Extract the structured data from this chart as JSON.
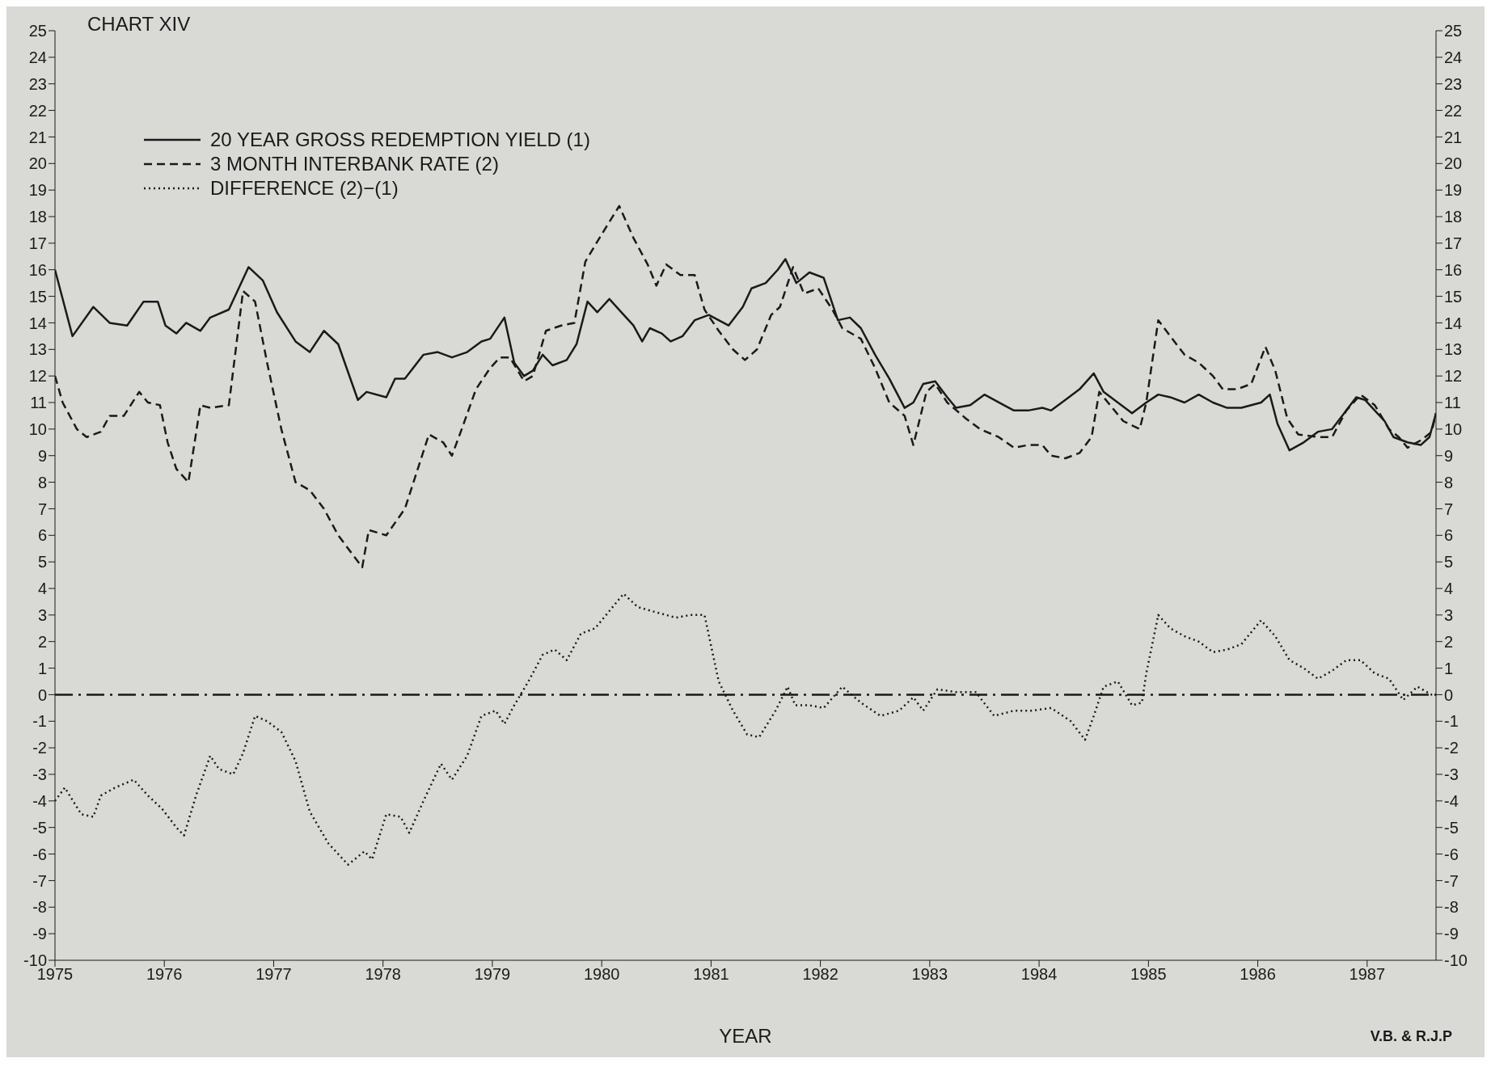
{
  "chart_data": {
    "type": "line",
    "title": "CHART XIV",
    "xlabel": "YEAR",
    "annotations": [
      "V.B. & R.J.P"
    ],
    "xlim": [
      1975,
      1987.63
    ],
    "xticks": [
      1975,
      1976,
      1977,
      1978,
      1979,
      1980,
      1981,
      1982,
      1983,
      1984,
      1985,
      1986,
      1987
    ],
    "ylim": [
      -10,
      25
    ],
    "yticks": [
      -10,
      -9,
      -8,
      -7,
      -6,
      -5,
      -4,
      -3,
      -2,
      -1,
      0,
      1,
      2,
      3,
      4,
      5,
      6,
      7,
      8,
      9,
      10,
      11,
      12,
      13,
      14,
      15,
      16,
      17,
      18,
      19,
      20,
      21,
      22,
      23,
      24,
      25
    ],
    "y2lim": [
      -10,
      25
    ],
    "y2ticks": [
      -10,
      -9,
      -8,
      -7,
      -6,
      -5,
      -4,
      -3,
      -2,
      -1,
      0,
      1,
      2,
      3,
      4,
      5,
      6,
      7,
      8,
      9,
      10,
      11,
      12,
      13,
      14,
      15,
      16,
      17,
      18,
      19,
      20,
      21,
      22,
      23,
      24,
      25
    ],
    "legend": "top left",
    "marker": "none",
    "ref_lines": [
      {
        "axis": "y",
        "value": 0,
        "line_style": "dashdot",
        "color": "#1a1a1a"
      }
    ],
    "series": [
      {
        "name": "20 YEAR GROSS REDEMPTION YIELD (1)",
        "color": "#1a1a1a",
        "line_style": "solid",
        "x": [
          1975.0,
          1975.16,
          1975.35,
          1975.5,
          1975.66,
          1975.81,
          1975.94,
          1976.01,
          1976.11,
          1976.2,
          1976.33,
          1976.42,
          1976.59,
          1976.77,
          1976.9,
          1977.03,
          1977.2,
          1977.33,
          1977.46,
          1977.59,
          1977.77,
          1977.85,
          1978.03,
          1978.11,
          1978.2,
          1978.37,
          1978.5,
          1978.63,
          1978.77,
          1978.9,
          1978.98,
          1979.11,
          1979.2,
          1979.29,
          1979.37,
          1979.46,
          1979.55,
          1979.68,
          1979.77,
          1979.87,
          1979.96,
          1980.07,
          1980.18,
          1980.29,
          1980.37,
          1980.44,
          1980.55,
          1980.63,
          1980.74,
          1980.85,
          1980.98,
          1981.16,
          1981.29,
          1981.37,
          1981.5,
          1981.61,
          1981.68,
          1981.78,
          1981.9,
          1982.03,
          1982.16,
          1982.27,
          1982.37,
          1982.5,
          1982.63,
          1982.77,
          1982.85,
          1982.94,
          1983.05,
          1983.16,
          1983.24,
          1983.37,
          1983.5,
          1983.68,
          1983.77,
          1983.9,
          1984.03,
          1984.11,
          1984.24,
          1984.37,
          1984.5,
          1984.59,
          1984.72,
          1984.85,
          1984.98,
          1985.09,
          1985.2,
          1985.33,
          1985.46,
          1985.59,
          1985.72,
          1985.85,
          1986.03,
          1986.11,
          1986.18,
          1986.29,
          1986.42,
          1986.55,
          1986.68,
          1986.79,
          1986.9,
          1986.98,
          1987.07,
          1987.16,
          1987.24,
          1987.37,
          1987.49,
          1987.57,
          1987.63
        ],
        "values": [
          16.0,
          13.5,
          14.6,
          14.0,
          13.9,
          14.8,
          14.8,
          13.9,
          13.6,
          14.0,
          13.7,
          14.2,
          14.5,
          16.1,
          15.6,
          14.4,
          13.3,
          12.9,
          13.7,
          13.2,
          11.1,
          11.4,
          11.2,
          11.9,
          11.9,
          12.8,
          12.9,
          12.7,
          12.9,
          13.3,
          13.4,
          14.2,
          12.5,
          12.0,
          12.2,
          12.8,
          12.4,
          12.6,
          13.2,
          14.8,
          14.4,
          14.9,
          14.4,
          13.9,
          13.3,
          13.8,
          13.6,
          13.3,
          13.5,
          14.1,
          14.3,
          13.9,
          14.6,
          15.3,
          15.5,
          16.0,
          16.4,
          15.5,
          15.9,
          15.7,
          14.1,
          14.2,
          13.8,
          12.8,
          11.9,
          10.8,
          11.0,
          11.7,
          11.8,
          11.2,
          10.8,
          10.9,
          11.3,
          10.9,
          10.7,
          10.7,
          10.8,
          10.7,
          11.1,
          11.5,
          12.1,
          11.4,
          11.0,
          10.6,
          11.0,
          11.3,
          11.2,
          11.0,
          11.3,
          11.0,
          10.8,
          10.8,
          11.0,
          11.3,
          10.2,
          9.2,
          9.5,
          9.9,
          10.0,
          10.6,
          11.2,
          11.1,
          10.7,
          10.3,
          9.7,
          9.5,
          9.4,
          9.7,
          10.6
        ]
      },
      {
        "name": "3 MONTH INTERBANK RATE (2)",
        "color": "#1a1a1a",
        "line_style": "dashed",
        "x": [
          1975.0,
          1975.07,
          1975.2,
          1975.29,
          1975.42,
          1975.5,
          1975.63,
          1975.77,
          1975.85,
          1975.96,
          1976.03,
          1976.11,
          1976.22,
          1976.33,
          1976.42,
          1976.59,
          1976.72,
          1976.83,
          1976.94,
          1977.07,
          1977.2,
          1977.33,
          1977.46,
          1977.59,
          1977.81,
          1977.87,
          1978.03,
          1978.2,
          1978.42,
          1978.55,
          1978.63,
          1978.72,
          1978.85,
          1978.98,
          1979.07,
          1979.16,
          1979.29,
          1979.37,
          1979.49,
          1979.63,
          1979.75,
          1979.85,
          1979.98,
          1980.16,
          1980.29,
          1980.42,
          1980.5,
          1980.59,
          1980.72,
          1980.85,
          1980.94,
          1981.07,
          1981.2,
          1981.31,
          1981.42,
          1981.55,
          1981.63,
          1981.75,
          1981.85,
          1981.98,
          1982.11,
          1982.2,
          1982.37,
          1982.5,
          1982.63,
          1982.77,
          1982.85,
          1982.97,
          1983.05,
          1983.16,
          1983.33,
          1983.46,
          1983.63,
          1983.77,
          1983.9,
          1984.03,
          1984.11,
          1984.24,
          1984.37,
          1984.48,
          1984.55,
          1984.63,
          1984.77,
          1984.92,
          1984.98,
          1985.09,
          1985.2,
          1985.33,
          1985.46,
          1985.59,
          1985.68,
          1985.81,
          1985.94,
          1986.07,
          1986.16,
          1986.27,
          1986.37,
          1986.55,
          1986.68,
          1986.81,
          1986.94,
          1987.07,
          1987.2,
          1987.29,
          1987.37,
          1987.5,
          1987.59,
          1987.63
        ],
        "values": [
          12.0,
          11.0,
          10.0,
          9.7,
          9.9,
          10.5,
          10.5,
          11.4,
          11.0,
          10.9,
          9.5,
          8.5,
          8.0,
          10.9,
          10.8,
          10.9,
          15.2,
          14.8,
          12.5,
          10.0,
          8.0,
          7.7,
          7.0,
          6.0,
          4.8,
          6.2,
          6.0,
          7.0,
          9.8,
          9.5,
          9.0,
          10.0,
          11.5,
          12.3,
          12.7,
          12.7,
          11.8,
          12.0,
          13.7,
          13.9,
          14.0,
          16.3,
          17.2,
          18.4,
          17.2,
          16.2,
          15.4,
          16.2,
          15.8,
          15.8,
          14.5,
          13.7,
          13.0,
          12.6,
          13.0,
          14.3,
          14.6,
          16.1,
          15.1,
          15.3,
          14.5,
          13.8,
          13.4,
          12.3,
          11.0,
          10.5,
          9.4,
          11.4,
          11.7,
          11.0,
          10.4,
          10.0,
          9.7,
          9.3,
          9.4,
          9.4,
          9.0,
          8.9,
          9.1,
          9.7,
          11.4,
          11.0,
          10.3,
          10.0,
          11.0,
          14.1,
          13.5,
          12.8,
          12.5,
          12.0,
          11.5,
          11.5,
          11.7,
          13.1,
          12.2,
          10.4,
          9.8,
          9.7,
          9.7,
          10.7,
          11.3,
          10.9,
          10.0,
          9.7,
          9.3,
          9.6,
          9.9,
          10.6
        ]
      },
      {
        "name": "DIFFERENCE (2)−(1)",
        "color": "#1a1a1a",
        "line_style": "dotted",
        "x": [
          1975.0,
          1975.09,
          1975.24,
          1975.35,
          1975.42,
          1975.55,
          1975.72,
          1975.85,
          1975.98,
          1976.11,
          1976.18,
          1976.29,
          1976.42,
          1976.5,
          1976.63,
          1976.72,
          1976.83,
          1976.94,
          1977.07,
          1977.2,
          1977.33,
          1977.5,
          1977.68,
          1977.83,
          1977.9,
          1978.03,
          1978.16,
          1978.24,
          1978.37,
          1978.53,
          1978.63,
          1978.77,
          1978.9,
          1979.03,
          1979.11,
          1979.2,
          1979.33,
          1979.46,
          1979.57,
          1979.68,
          1979.81,
          1979.94,
          1980.04,
          1980.2,
          1980.33,
          1980.5,
          1980.68,
          1980.81,
          1980.94,
          1981.07,
          1981.2,
          1981.33,
          1981.44,
          1981.59,
          1981.7,
          1981.77,
          1981.9,
          1982.03,
          1982.2,
          1982.37,
          1982.55,
          1982.72,
          1982.85,
          1982.94,
          1983.07,
          1983.24,
          1983.42,
          1983.59,
          1983.77,
          1983.94,
          1984.11,
          1984.29,
          1984.42,
          1984.5,
          1984.59,
          1984.72,
          1984.85,
          1984.94,
          1984.98,
          1985.09,
          1985.2,
          1985.33,
          1985.46,
          1985.59,
          1985.72,
          1985.85,
          1986.03,
          1986.16,
          1986.29,
          1986.42,
          1986.55,
          1986.68,
          1986.81,
          1986.94,
          1987.07,
          1987.2,
          1987.33,
          1987.46,
          1987.59,
          1987.63
        ],
        "values": [
          -4.0,
          -3.5,
          -4.5,
          -4.6,
          -3.8,
          -3.5,
          -3.2,
          -3.8,
          -4.3,
          -5.0,
          -5.3,
          -3.8,
          -2.3,
          -2.8,
          -3.0,
          -2.2,
          -0.8,
          -1.0,
          -1.4,
          -2.5,
          -4.4,
          -5.6,
          -6.4,
          -5.9,
          -6.2,
          -4.5,
          -4.6,
          -5.2,
          -4.0,
          -2.6,
          -3.2,
          -2.3,
          -0.8,
          -0.6,
          -1.1,
          -0.4,
          0.5,
          1.5,
          1.7,
          1.3,
          2.3,
          2.5,
          3.0,
          3.8,
          3.3,
          3.1,
          2.9,
          3.0,
          3.0,
          0.5,
          -0.6,
          -1.5,
          -1.6,
          -0.6,
          0.3,
          -0.4,
          -0.4,
          -0.5,
          0.3,
          -0.3,
          -0.8,
          -0.6,
          -0.1,
          -0.6,
          0.2,
          0.1,
          0.1,
          -0.8,
          -0.6,
          -0.6,
          -0.5,
          -1.0,
          -1.7,
          -0.8,
          0.3,
          0.5,
          -0.4,
          -0.3,
          0.8,
          3.0,
          2.5,
          2.2,
          2.0,
          1.6,
          1.7,
          1.9,
          2.8,
          2.2,
          1.3,
          1.0,
          0.6,
          0.9,
          1.3,
          1.3,
          0.8,
          0.6,
          -0.2,
          0.3,
          0.0,
          0.0
        ]
      }
    ]
  }
}
